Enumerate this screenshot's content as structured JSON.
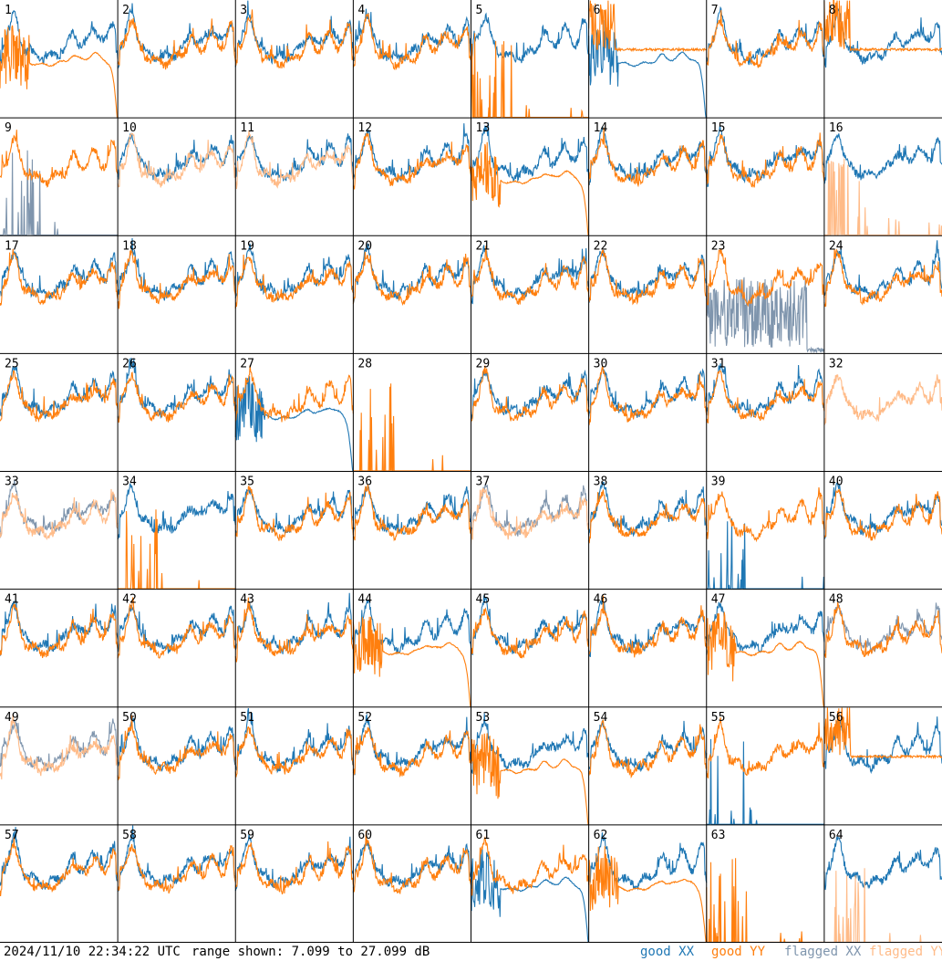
{
  "footer": {
    "timestamp": "2024/11/10 22:34:22 UTC",
    "range": "range shown: 7.099 to 27.099 dB",
    "legend": [
      "good XX",
      "good YY",
      "flagged XX",
      "flagged YY"
    ]
  },
  "colors": {
    "good_xx": "#1f77b4",
    "good_yy": "#ff7f0e",
    "flagged_xx": "#7f95ad",
    "flagged_yy": "#ffbb88"
  },
  "chart_data": {
    "type": "line",
    "title": "",
    "xlabel": "",
    "ylabel": "",
    "ylim": [
      7.099,
      27.099
    ],
    "grid": "8x8 small multiples",
    "panels": [
      {
        "label": "1",
        "xx": "good",
        "yy": "falloff"
      },
      {
        "label": "2",
        "xx": "good",
        "yy": "good"
      },
      {
        "label": "3",
        "xx": "good",
        "yy": "good"
      },
      {
        "label": "4",
        "xx": "good",
        "yy": "good"
      },
      {
        "label": "5",
        "xx": "good",
        "yy": "spikes"
      },
      {
        "label": "6",
        "xx": "falloff",
        "yy": "flat"
      },
      {
        "label": "7",
        "xx": "good",
        "yy": "good"
      },
      {
        "label": "8",
        "xx": "good",
        "yy": "flat"
      },
      {
        "label": "9",
        "xx": "flagged_spikes",
        "yy": "good"
      },
      {
        "label": "10",
        "xx": "good",
        "yy": "flagged"
      },
      {
        "label": "11",
        "xx": "good",
        "yy": "flagged"
      },
      {
        "label": "12",
        "xx": "good",
        "yy": "good"
      },
      {
        "label": "13",
        "xx": "good",
        "yy": "falloff"
      },
      {
        "label": "14",
        "xx": "good",
        "yy": "good"
      },
      {
        "label": "15",
        "xx": "good",
        "yy": "good"
      },
      {
        "label": "16",
        "xx": "good",
        "yy": "flagged_spikes"
      },
      {
        "label": "17",
        "xx": "good",
        "yy": "good"
      },
      {
        "label": "18",
        "xx": "good",
        "yy": "good"
      },
      {
        "label": "19",
        "xx": "good",
        "yy": "good"
      },
      {
        "label": "20",
        "xx": "good",
        "yy": "good"
      },
      {
        "label": "21",
        "xx": "good",
        "yy": "good"
      },
      {
        "label": "22",
        "xx": "good",
        "yy": "good"
      },
      {
        "label": "23",
        "xx": "flagged_noisy",
        "yy": "good"
      },
      {
        "label": "24",
        "xx": "good",
        "yy": "good"
      },
      {
        "label": "25",
        "xx": "good",
        "yy": "good"
      },
      {
        "label": "26",
        "xx": "good",
        "yy": "good"
      },
      {
        "label": "27",
        "xx": "falloff",
        "yy": "good"
      },
      {
        "label": "28",
        "xx": "none",
        "yy": "spikes"
      },
      {
        "label": "29",
        "xx": "good",
        "yy": "good"
      },
      {
        "label": "30",
        "xx": "good",
        "yy": "good"
      },
      {
        "label": "31",
        "xx": "good",
        "yy": "good"
      },
      {
        "label": "32",
        "xx": "none",
        "yy": "flagged"
      },
      {
        "label": "33",
        "xx": "flagged",
        "yy": "flagged"
      },
      {
        "label": "34",
        "xx": "good",
        "yy": "spikes"
      },
      {
        "label": "35",
        "xx": "good",
        "yy": "good"
      },
      {
        "label": "36",
        "xx": "good",
        "yy": "good"
      },
      {
        "label": "37",
        "xx": "flagged",
        "yy": "flagged"
      },
      {
        "label": "38",
        "xx": "good",
        "yy": "good"
      },
      {
        "label": "39",
        "xx": "spikes",
        "yy": "good"
      },
      {
        "label": "40",
        "xx": "good",
        "yy": "good"
      },
      {
        "label": "41",
        "xx": "good",
        "yy": "good"
      },
      {
        "label": "42",
        "xx": "good",
        "yy": "good"
      },
      {
        "label": "43",
        "xx": "good",
        "yy": "good"
      },
      {
        "label": "44",
        "xx": "good",
        "yy": "falloff"
      },
      {
        "label": "45",
        "xx": "good",
        "yy": "good"
      },
      {
        "label": "46",
        "xx": "good",
        "yy": "good"
      },
      {
        "label": "47",
        "xx": "good",
        "yy": "falloff"
      },
      {
        "label": "48",
        "xx": "flagged",
        "yy": "good"
      },
      {
        "label": "49",
        "xx": "flagged",
        "yy": "flagged"
      },
      {
        "label": "50",
        "xx": "good",
        "yy": "good"
      },
      {
        "label": "51",
        "xx": "good",
        "yy": "good"
      },
      {
        "label": "52",
        "xx": "good",
        "yy": "good"
      },
      {
        "label": "53",
        "xx": "good",
        "yy": "falloff"
      },
      {
        "label": "54",
        "xx": "good",
        "yy": "good"
      },
      {
        "label": "55",
        "xx": "spikes",
        "yy": "good"
      },
      {
        "label": "56",
        "xx": "good",
        "yy": "flat"
      },
      {
        "label": "57",
        "xx": "good",
        "yy": "good"
      },
      {
        "label": "58",
        "xx": "good",
        "yy": "good"
      },
      {
        "label": "59",
        "xx": "good",
        "yy": "good"
      },
      {
        "label": "60",
        "xx": "good",
        "yy": "good"
      },
      {
        "label": "61",
        "xx": "falloff",
        "yy": "good"
      },
      {
        "label": "62",
        "xx": "good",
        "yy": "falloff"
      },
      {
        "label": "63",
        "xx": "none",
        "yy": "spikes"
      },
      {
        "label": "64",
        "xx": "good",
        "yy": "flagged_spikes"
      }
    ]
  }
}
